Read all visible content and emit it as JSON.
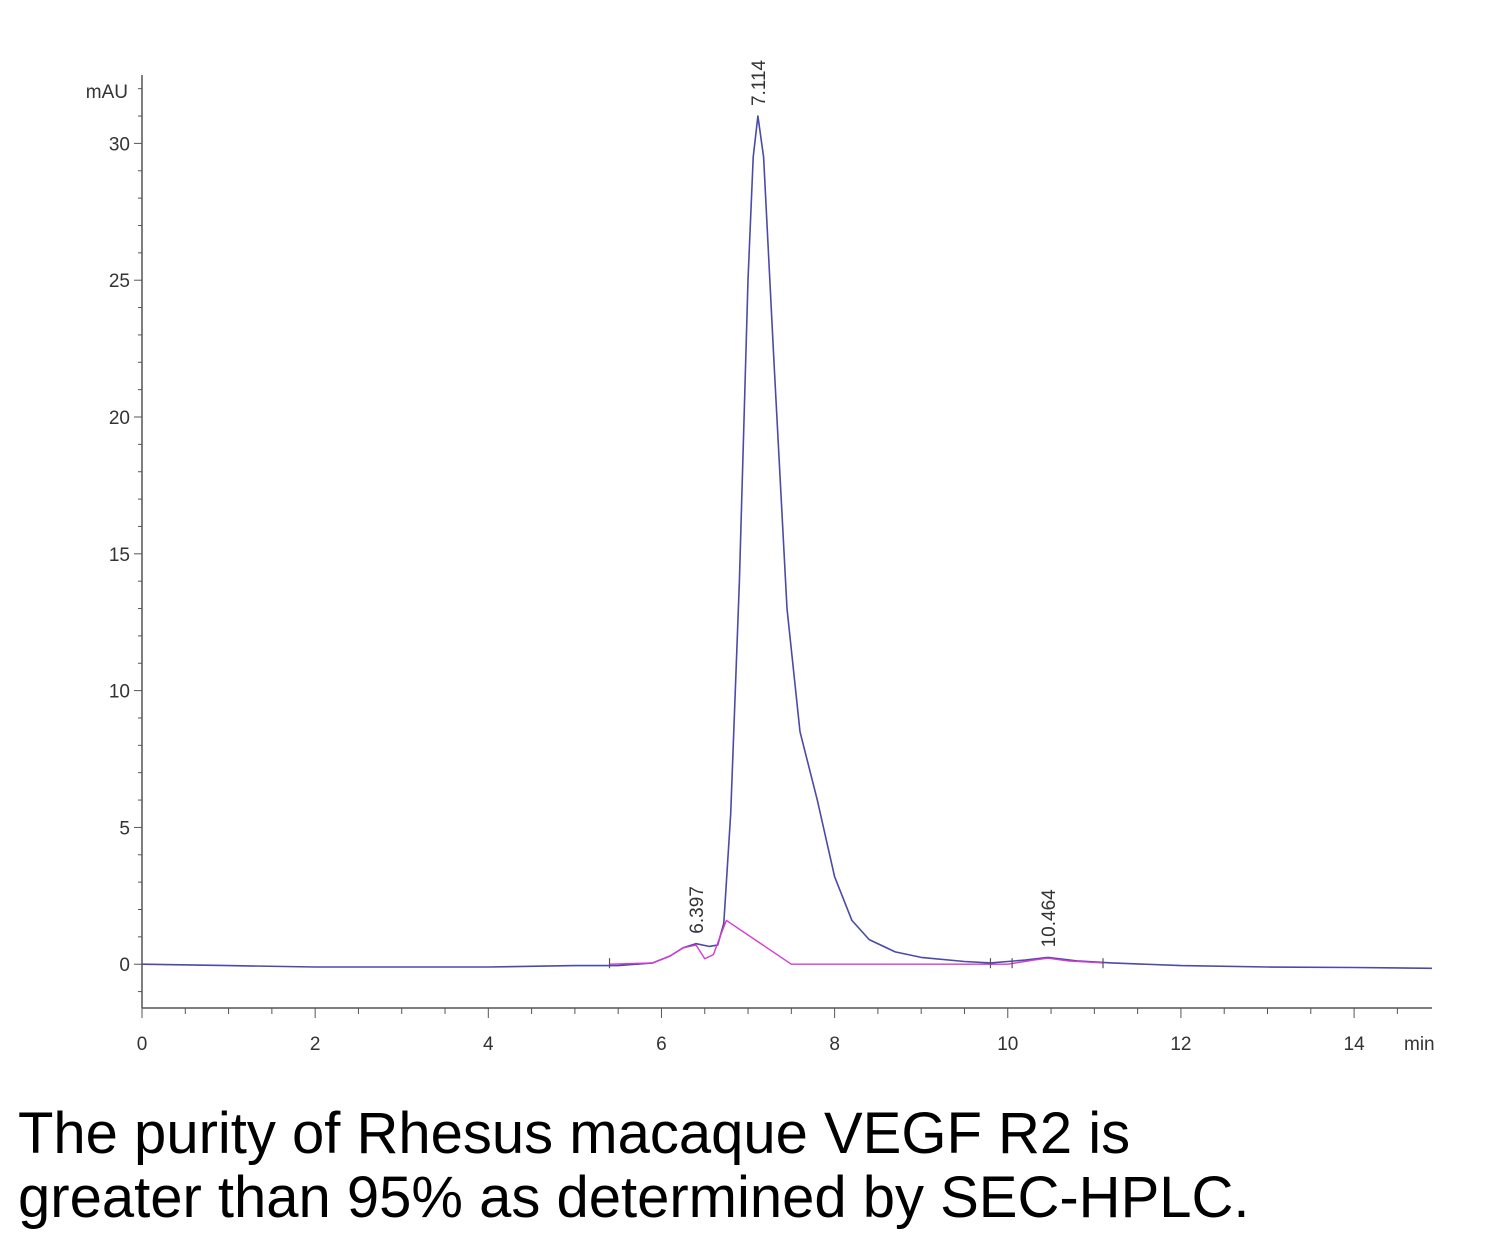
{
  "chart_data": {
    "type": "line",
    "title": "",
    "xlabel": "",
    "ylabel": "",
    "x_unit": "min",
    "y_unit": "mAU",
    "xlim": [
      0,
      14.9
    ],
    "ylim": [
      -1.6,
      32.5
    ],
    "x_ticks": [
      0,
      2,
      4,
      6,
      8,
      10,
      12,
      14
    ],
    "x_tick_labels": [
      "0",
      "2",
      "4",
      "6",
      "8",
      "10",
      "12",
      "14"
    ],
    "y_ticks": [
      0,
      5,
      10,
      15,
      20,
      25,
      30
    ],
    "y_tick_labels": [
      "0",
      "5",
      "10",
      "15",
      "20",
      "25",
      "30"
    ],
    "grid": false,
    "legend": "none",
    "series": [
      {
        "role": "signal",
        "color": "#4a4aa8",
        "x": [
          0,
          1,
          2,
          3,
          4,
          5,
          5.5,
          5.9,
          6.1,
          6.25,
          6.4,
          6.55,
          6.65,
          6.72,
          6.8,
          6.9,
          7.0,
          7.06,
          7.114,
          7.18,
          7.3,
          7.45,
          7.6,
          7.8,
          8.0,
          8.2,
          8.4,
          8.7,
          9.0,
          9.5,
          9.8,
          10.0,
          10.2,
          10.464,
          10.8,
          11.2,
          12,
          13,
          14,
          14.9
        ],
        "y": [
          0,
          -0.05,
          -0.1,
          -0.1,
          -0.1,
          -0.05,
          -0.05,
          0.05,
          0.3,
          0.6,
          0.75,
          0.65,
          0.7,
          1.5,
          5.5,
          14,
          25,
          29.5,
          31,
          29.5,
          22,
          13,
          8.5,
          6,
          3.2,
          1.6,
          0.9,
          0.45,
          0.25,
          0.1,
          0.05,
          0.1,
          0.15,
          0.25,
          0.12,
          0.05,
          -0.05,
          -0.1,
          -0.12,
          -0.15
        ]
      },
      {
        "role": "integration",
        "color": "#d63ad6",
        "x": [
          5.4,
          5.9,
          6.1,
          6.25,
          6.4,
          6.5,
          6.6,
          6.7,
          6.75,
          7.5,
          8.5,
          9.5,
          10.0,
          10.3,
          10.464,
          10.7,
          11.1
        ],
        "y": [
          0,
          0.05,
          0.3,
          0.6,
          0.7,
          0.2,
          0.35,
          1.2,
          1.6,
          0,
          0,
          0,
          0,
          0.15,
          0.22,
          0.12,
          0.05
        ]
      }
    ],
    "annotations": [
      {
        "x": 6.397,
        "y": 0.75,
        "text": "6.397"
      },
      {
        "x": 7.114,
        "y": 31,
        "text": "7.114"
      },
      {
        "x": 10.464,
        "y": 0.25,
        "text": "10.464"
      }
    ]
  },
  "caption": {
    "line1": "The purity of Rhesus macaque VEGF R2 is",
    "line2": "greater than 95% as determined by SEC-HPLC."
  }
}
